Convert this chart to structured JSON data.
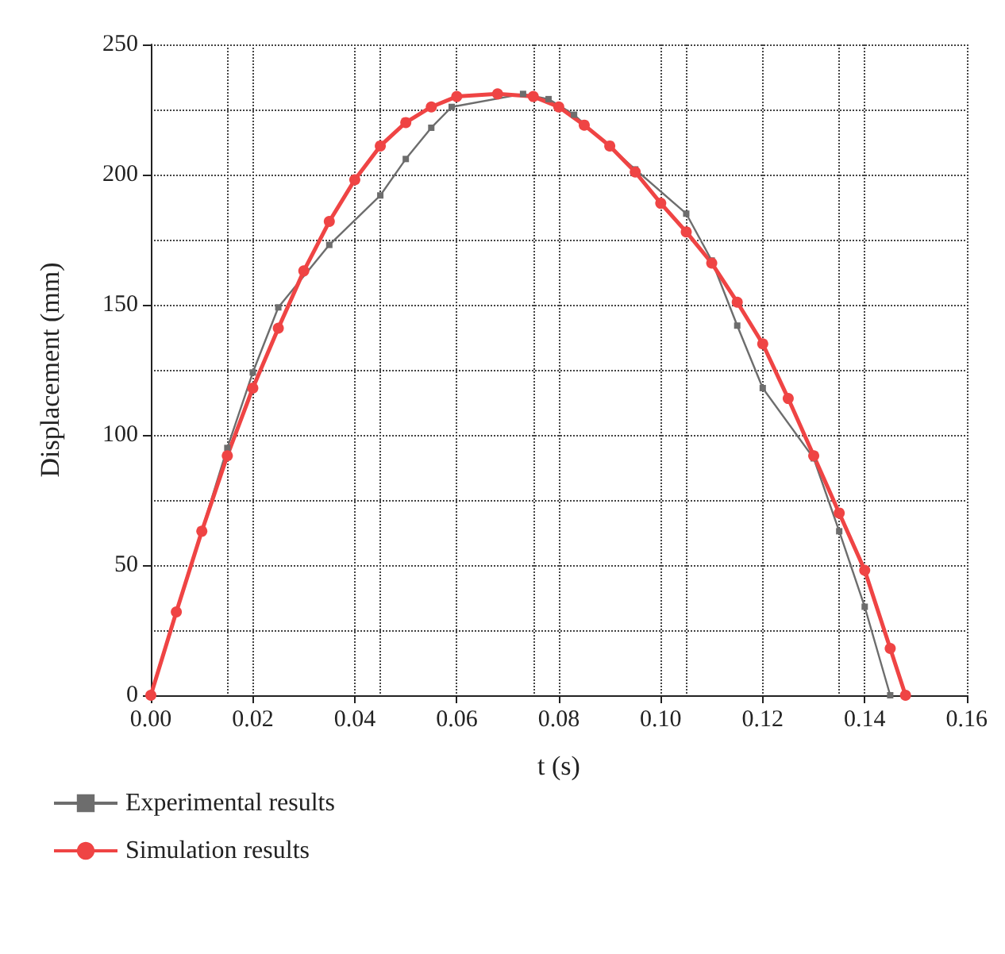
{
  "chart_data": {
    "type": "line",
    "xlabel": "t (s)",
    "ylabel": "Displacement (mm)",
    "xlim": [
      0,
      0.16
    ],
    "xticks": [
      {
        "value": 0,
        "label": "0.00"
      },
      {
        "value": 0.02,
        "label": "0.02"
      },
      {
        "value": 0.04,
        "label": "0.04"
      },
      {
        "value": 0.06,
        "label": "0.06"
      },
      {
        "value": 0.08,
        "label": "0.08"
      },
      {
        "value": 0.1,
        "label": "0.10"
      },
      {
        "value": 0.12,
        "label": "0.12"
      },
      {
        "value": 0.14,
        "label": "0.14"
      },
      {
        "value": 0.16,
        "label": "0.16"
      }
    ],
    "ylim": [
      0,
      250
    ],
    "yticks": [
      0,
      50,
      100,
      150,
      200,
      250
    ],
    "grid": true,
    "legend": "bottom left",
    "series": [
      {
        "name": "Experimental results",
        "color": "#6d6d6d",
        "marker": "square",
        "x": [
          0,
          0.015,
          0.02,
          0.025,
          0.035,
          0.045,
          0.05,
          0.055,
          0.059,
          0.073,
          0.078,
          0.083,
          0.095,
          0.105,
          0.11,
          0.115,
          0.12,
          0.13,
          0.135,
          0.14,
          0.145
        ],
        "values": [
          0,
          95,
          124,
          149,
          173,
          192,
          206,
          218,
          226,
          231,
          229,
          223,
          202,
          185,
          167,
          142,
          118,
          91,
          63,
          34,
          0
        ]
      },
      {
        "name": "Simulation results",
        "color": "#ef4444",
        "marker": "circle",
        "x": [
          0,
          0.005,
          0.01,
          0.015,
          0.02,
          0.025,
          0.03,
          0.035,
          0.04,
          0.045,
          0.05,
          0.055,
          0.06,
          0.068,
          0.075,
          0.08,
          0.085,
          0.09,
          0.095,
          0.1,
          0.105,
          0.11,
          0.115,
          0.12,
          0.125,
          0.13,
          0.135,
          0.14,
          0.145,
          0.148
        ],
        "values": [
          0,
          32,
          63,
          92,
          118,
          141,
          163,
          182,
          198,
          211,
          220,
          226,
          230,
          231,
          230,
          226,
          219,
          211,
          201,
          189,
          178,
          166,
          151,
          135,
          114,
          92,
          70,
          48,
          18,
          0
        ]
      }
    ]
  }
}
